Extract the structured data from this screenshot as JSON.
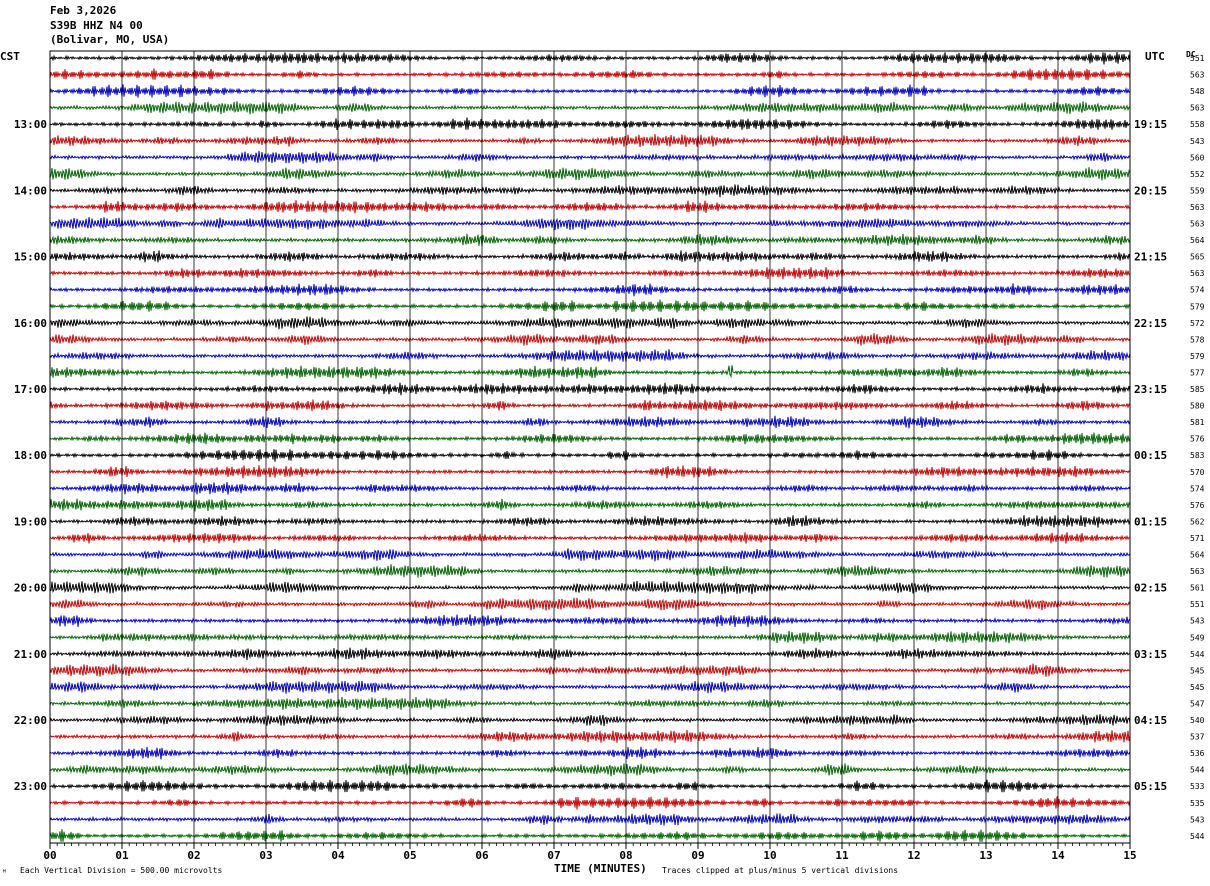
{
  "header": {
    "date": "Feb 3,2026",
    "station": "S39B HHZ N4 00",
    "location": "(Bolivar, MO, USA)"
  },
  "corners": {
    "left_zone": "CST",
    "right_zone": "UTC",
    "dc_label": "DC"
  },
  "footer": {
    "division_note": "Each Vertical Division =  500.00 microvolts",
    "clip_note": "Traces clipped at plus/minus 5 vertical divisions",
    "mark": "ᴹ"
  },
  "colors": {
    "trace_cycle": [
      "#000000",
      "#cc0000",
      "#0000cc",
      "#006600"
    ],
    "grid": "#000000",
    "background": "#ffffff"
  },
  "chart_data": {
    "type": "line",
    "chart_kind": "helicorder seismogram",
    "xlabel": "TIME (MINUTES)",
    "xlim": [
      0,
      15
    ],
    "x_ticks": [
      "00",
      "01",
      "02",
      "03",
      "04",
      "05",
      "06",
      "07",
      "08",
      "09",
      "10",
      "11",
      "12",
      "13",
      "14",
      "15"
    ],
    "rows_per_hour": 4,
    "row_duration_minutes": 15,
    "trace_count": 48,
    "left_time_labels": [
      {
        "row": 4,
        "label": "13:00"
      },
      {
        "row": 8,
        "label": "14:00"
      },
      {
        "row": 12,
        "label": "15:00"
      },
      {
        "row": 16,
        "label": "16:00"
      },
      {
        "row": 20,
        "label": "17:00"
      },
      {
        "row": 24,
        "label": "18:00"
      },
      {
        "row": 28,
        "label": "19:00"
      },
      {
        "row": 32,
        "label": "20:00"
      },
      {
        "row": 36,
        "label": "21:00"
      },
      {
        "row": 40,
        "label": "22:00"
      },
      {
        "row": 44,
        "label": "23:00"
      }
    ],
    "right_time_labels": [
      {
        "row": 4,
        "label": "19:15"
      },
      {
        "row": 8,
        "label": "20:15"
      },
      {
        "row": 12,
        "label": "21:15"
      },
      {
        "row": 16,
        "label": "22:15"
      },
      {
        "row": 20,
        "label": "23:15"
      },
      {
        "row": 24,
        "label": "00:15"
      },
      {
        "row": 28,
        "label": "01:15"
      },
      {
        "row": 32,
        "label": "02:15"
      },
      {
        "row": 36,
        "label": "03:15"
      },
      {
        "row": 40,
        "label": "04:15"
      },
      {
        "row": 44,
        "label": "05:15"
      }
    ],
    "dc_offsets": [
      551,
      563,
      548,
      563,
      558,
      543,
      560,
      552,
      559,
      563,
      563,
      564,
      565,
      563,
      574,
      579,
      572,
      578,
      579,
      577,
      585,
      580,
      581,
      576,
      583,
      570,
      574,
      576,
      562,
      571,
      564,
      563,
      561,
      551,
      543,
      549,
      544,
      545,
      545,
      547,
      540,
      537,
      536,
      544,
      533,
      535,
      543,
      544
    ],
    "events": [
      {
        "row": 0,
        "minute": 9.35,
        "amplitude": "large"
      },
      {
        "row": 4,
        "minute": 3.0,
        "amplitude": "moderate"
      },
      {
        "row": 19,
        "minute": 9.45,
        "amplitude": "spike"
      }
    ]
  }
}
